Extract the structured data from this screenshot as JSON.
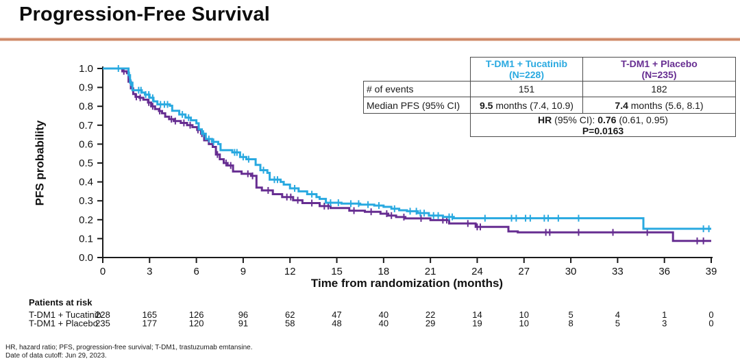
{
  "header": {
    "title": "Progression-Free Survival"
  },
  "colors": {
    "tucatinib": "#29A9E0",
    "placebo": "#662D91",
    "divider": "#C9815F",
    "axis": "#1a1a1a"
  },
  "stats_table": {
    "header_tucatinib_line1": "T-DM1 + Tucatinib",
    "header_tucatinib_line2": "(N=228)",
    "header_placebo_line1": "T-DM1 + Placebo",
    "header_placebo_line2": "(N=235)",
    "row_events_label": "# of events",
    "events_tucatinib": "151",
    "events_placebo": "182",
    "row_median_label": "Median PFS (95% CI)",
    "median_tucatinib_bold": "9.5",
    "median_tucatinib_rest": " months (7.4, 10.9)",
    "median_placebo_bold": "7.4",
    "median_placebo_rest": " months (5.6, 8.1)",
    "hr_label_bold": "HR",
    "hr_mid": " (95% CI): ",
    "hr_value_bold": "0.76",
    "hr_ci_rest": " (0.61, 0.95)",
    "p_value": "P=0.0163"
  },
  "chart_data": {
    "type": "line",
    "subtype": "kaplan-meier-step",
    "xlabel": "Time from randomization (months)",
    "ylabel": "PFS probability",
    "xlim": [
      0,
      39
    ],
    "ylim": [
      0.0,
      1.0
    ],
    "xticks": [
      0,
      3,
      6,
      9,
      12,
      15,
      18,
      21,
      24,
      27,
      30,
      33,
      36,
      39
    ],
    "yticks": [
      0.0,
      0.1,
      0.2,
      0.3,
      0.4,
      0.5,
      0.6,
      0.7,
      0.8,
      0.9,
      1.0
    ],
    "grid": false,
    "series": [
      {
        "name": "T-DM1 + Tucatinib",
        "color": "#29A9E0",
        "steps": [
          [
            0,
            1.0
          ],
          [
            1.55,
            1.0
          ],
          [
            1.65,
            0.965
          ],
          [
            1.75,
            0.925
          ],
          [
            1.9,
            0.885
          ],
          [
            2.5,
            0.873
          ],
          [
            2.7,
            0.862
          ],
          [
            3.0,
            0.845
          ],
          [
            3.25,
            0.826
          ],
          [
            3.5,
            0.81
          ],
          [
            4.3,
            0.803
          ],
          [
            4.45,
            0.776
          ],
          [
            4.9,
            0.757
          ],
          [
            5.3,
            0.74
          ],
          [
            5.65,
            0.726
          ],
          [
            6.0,
            0.71
          ],
          [
            6.15,
            0.678
          ],
          [
            6.35,
            0.655
          ],
          [
            6.6,
            0.627
          ],
          [
            7.0,
            0.612
          ],
          [
            7.4,
            0.6
          ],
          [
            7.55,
            0.568
          ],
          [
            8.3,
            0.556
          ],
          [
            8.8,
            0.532
          ],
          [
            9.2,
            0.52
          ],
          [
            9.8,
            0.49
          ],
          [
            10.1,
            0.462
          ],
          [
            10.55,
            0.448
          ],
          [
            10.7,
            0.412
          ],
          [
            11.4,
            0.4
          ],
          [
            11.6,
            0.386
          ],
          [
            12.0,
            0.366
          ],
          [
            12.55,
            0.35
          ],
          [
            13.1,
            0.335
          ],
          [
            13.7,
            0.32
          ],
          [
            13.9,
            0.31
          ],
          [
            14.3,
            0.29
          ],
          [
            15.3,
            0.285
          ],
          [
            16.5,
            0.28
          ],
          [
            17.4,
            0.275
          ],
          [
            18.0,
            0.268
          ],
          [
            18.5,
            0.258
          ],
          [
            19.0,
            0.25
          ],
          [
            19.5,
            0.245
          ],
          [
            20.2,
            0.235
          ],
          [
            20.9,
            0.222
          ],
          [
            21.8,
            0.215
          ],
          [
            22.5,
            0.208
          ],
          [
            34.5,
            0.208
          ],
          [
            34.65,
            0.152
          ],
          [
            39,
            0.152
          ]
        ],
        "censor_times": [
          1.0,
          1.7,
          1.8,
          2.3,
          2.45,
          2.75,
          2.95,
          3.2,
          3.7,
          3.95,
          4.15,
          5.1,
          5.5,
          6.45,
          6.8,
          7.1,
          8.45,
          8.6,
          9.0,
          9.35,
          10.3,
          11.0,
          11.2,
          12.3,
          13.4,
          14.6,
          15.1,
          15.9,
          16.4,
          17.0,
          17.7,
          18.7,
          19.7,
          20.1,
          20.35,
          20.6,
          21.2,
          21.5,
          22.2,
          22.4,
          24.5,
          26.2,
          26.5,
          27.1,
          27.4,
          28.3,
          28.55,
          29.2,
          30.5,
          38.5,
          38.85
        ]
      },
      {
        "name": "T-DM1 + Placebo",
        "color": "#662D91",
        "steps": [
          [
            0,
            1.0
          ],
          [
            1.15,
            1.0
          ],
          [
            1.25,
            0.985
          ],
          [
            1.55,
            0.975
          ],
          [
            1.65,
            0.93
          ],
          [
            1.8,
            0.895
          ],
          [
            1.95,
            0.865
          ],
          [
            2.1,
            0.85
          ],
          [
            2.35,
            0.845
          ],
          [
            2.6,
            0.835
          ],
          [
            2.9,
            0.82
          ],
          [
            3.1,
            0.8
          ],
          [
            3.35,
            0.785
          ],
          [
            3.6,
            0.775
          ],
          [
            3.8,
            0.763
          ],
          [
            4.0,
            0.745
          ],
          [
            4.25,
            0.732
          ],
          [
            4.55,
            0.722
          ],
          [
            5.0,
            0.712
          ],
          [
            5.4,
            0.7
          ],
          [
            5.75,
            0.69
          ],
          [
            6.05,
            0.675
          ],
          [
            6.3,
            0.655
          ],
          [
            6.5,
            0.62
          ],
          [
            6.8,
            0.6
          ],
          [
            7.05,
            0.585
          ],
          [
            7.25,
            0.545
          ],
          [
            7.5,
            0.52
          ],
          [
            7.75,
            0.5
          ],
          [
            8.0,
            0.487
          ],
          [
            8.35,
            0.455
          ],
          [
            8.9,
            0.443
          ],
          [
            9.5,
            0.432
          ],
          [
            9.85,
            0.37
          ],
          [
            10.2,
            0.355
          ],
          [
            10.9,
            0.335
          ],
          [
            11.5,
            0.32
          ],
          [
            12.2,
            0.303
          ],
          [
            12.8,
            0.288
          ],
          [
            13.9,
            0.272
          ],
          [
            14.6,
            0.262
          ],
          [
            15.8,
            0.248
          ],
          [
            16.8,
            0.242
          ],
          [
            17.8,
            0.232
          ],
          [
            18.3,
            0.222
          ],
          [
            18.8,
            0.214
          ],
          [
            19.4,
            0.207
          ],
          [
            21.0,
            0.198
          ],
          [
            22.2,
            0.18
          ],
          [
            23.9,
            0.162
          ],
          [
            26.0,
            0.138
          ],
          [
            26.6,
            0.133
          ],
          [
            36.45,
            0.133
          ],
          [
            36.55,
            0.088
          ],
          [
            39,
            0.088
          ]
        ],
        "censor_times": [
          1.35,
          2.15,
          2.4,
          2.95,
          3.2,
          3.65,
          4.4,
          4.65,
          5.2,
          5.6,
          6.1,
          6.35,
          7.35,
          7.9,
          8.2,
          9.3,
          9.6,
          10.6,
          11.8,
          12.05,
          12.5,
          13.4,
          14.2,
          14.45,
          16.1,
          17.2,
          18.2,
          18.5,
          19.3,
          20.4,
          21.8,
          22.05,
          23.4,
          24.0,
          24.2,
          28.4,
          28.65,
          30.5,
          32.7,
          34.9,
          38.1,
          38.5
        ]
      }
    ],
    "risk_table": {
      "title": "Patients at risk",
      "times": [
        0,
        3,
        6,
        9,
        12,
        15,
        18,
        21,
        24,
        27,
        30,
        33,
        36,
        39
      ],
      "rows": [
        {
          "label": "T-DM1 + Tucatinib",
          "counts": [
            228,
            165,
            126,
            96,
            62,
            47,
            40,
            22,
            14,
            10,
            5,
            4,
            1,
            0
          ]
        },
        {
          "label": "T-DM1 + Placebo",
          "counts": [
            235,
            177,
            120,
            91,
            58,
            48,
            40,
            29,
            19,
            10,
            8,
            5,
            3,
            0
          ]
        }
      ]
    }
  },
  "footnotes": [
    "HR, hazard ratio; PFS, progression-free survival; T-DM1, trastuzumab emtansine.",
    "Date of data cutoff: Jun 29, 2023."
  ]
}
